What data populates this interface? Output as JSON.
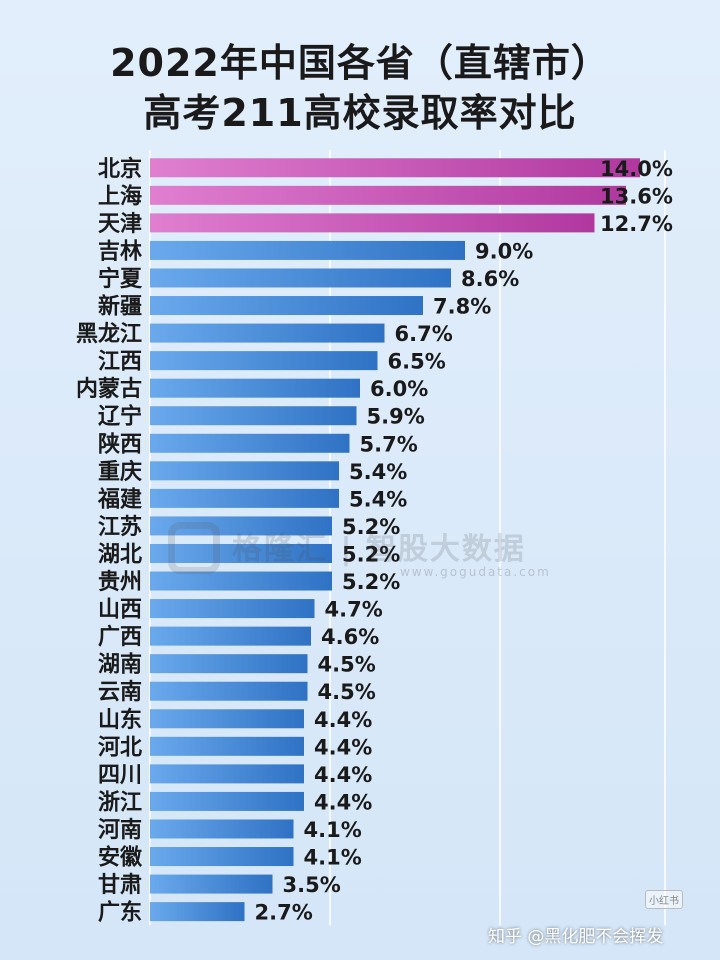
{
  "chart_data": {
    "type": "bar",
    "orientation": "horizontal",
    "title_line1": "2022年中国各省（直辖市）",
    "title_line2": "高考211高校录取率对比",
    "categories": [
      "北京",
      "上海",
      "天津",
      "吉林",
      "宁夏",
      "新疆",
      "黑龙江",
      "江西",
      "内蒙古",
      "辽宁",
      "陕西",
      "重庆",
      "福建",
      "江苏",
      "湖北",
      "贵州",
      "山西",
      "广西",
      "湖南",
      "云南",
      "山东",
      "河北",
      "四川",
      "浙江",
      "河南",
      "安徽",
      "甘肃",
      "广东"
    ],
    "values": [
      14.0,
      13.6,
      12.7,
      9.0,
      8.6,
      7.8,
      6.7,
      6.5,
      6.0,
      5.9,
      5.7,
      5.4,
      5.4,
      5.2,
      5.2,
      5.2,
      4.7,
      4.6,
      4.5,
      4.5,
      4.4,
      4.4,
      4.4,
      4.4,
      4.1,
      4.1,
      3.5,
      2.7
    ],
    "value_labels": [
      "14.0%",
      "13.6%",
      "12.7%",
      "9.0%",
      "8.6%",
      "7.8%",
      "6.7%",
      "6.5%",
      "6.0%",
      "5.9%",
      "5.7%",
      "5.4%",
      "5.4%",
      "5.2%",
      "5.2%",
      "5.2%",
      "4.7%",
      "4.6%",
      "4.5%",
      "4.5%",
      "4.4%",
      "4.4%",
      "4.4%",
      "4.4%",
      "4.1%",
      "4.1%",
      "3.5%",
      "2.7%"
    ],
    "highlight_count": 3,
    "colors": {
      "highlight": "#c04fb2",
      "normal": "#3f86d6",
      "grid": "#ffffff"
    },
    "grid": true,
    "xlim": [
      0,
      14
    ]
  },
  "watermark": {
    "brand": "格隆汇 | 智股大数据",
    "url": "www.gogudata.com"
  },
  "footer": {
    "credit": "知乎 @黑化肥不会挥发",
    "badge": "小红书"
  }
}
